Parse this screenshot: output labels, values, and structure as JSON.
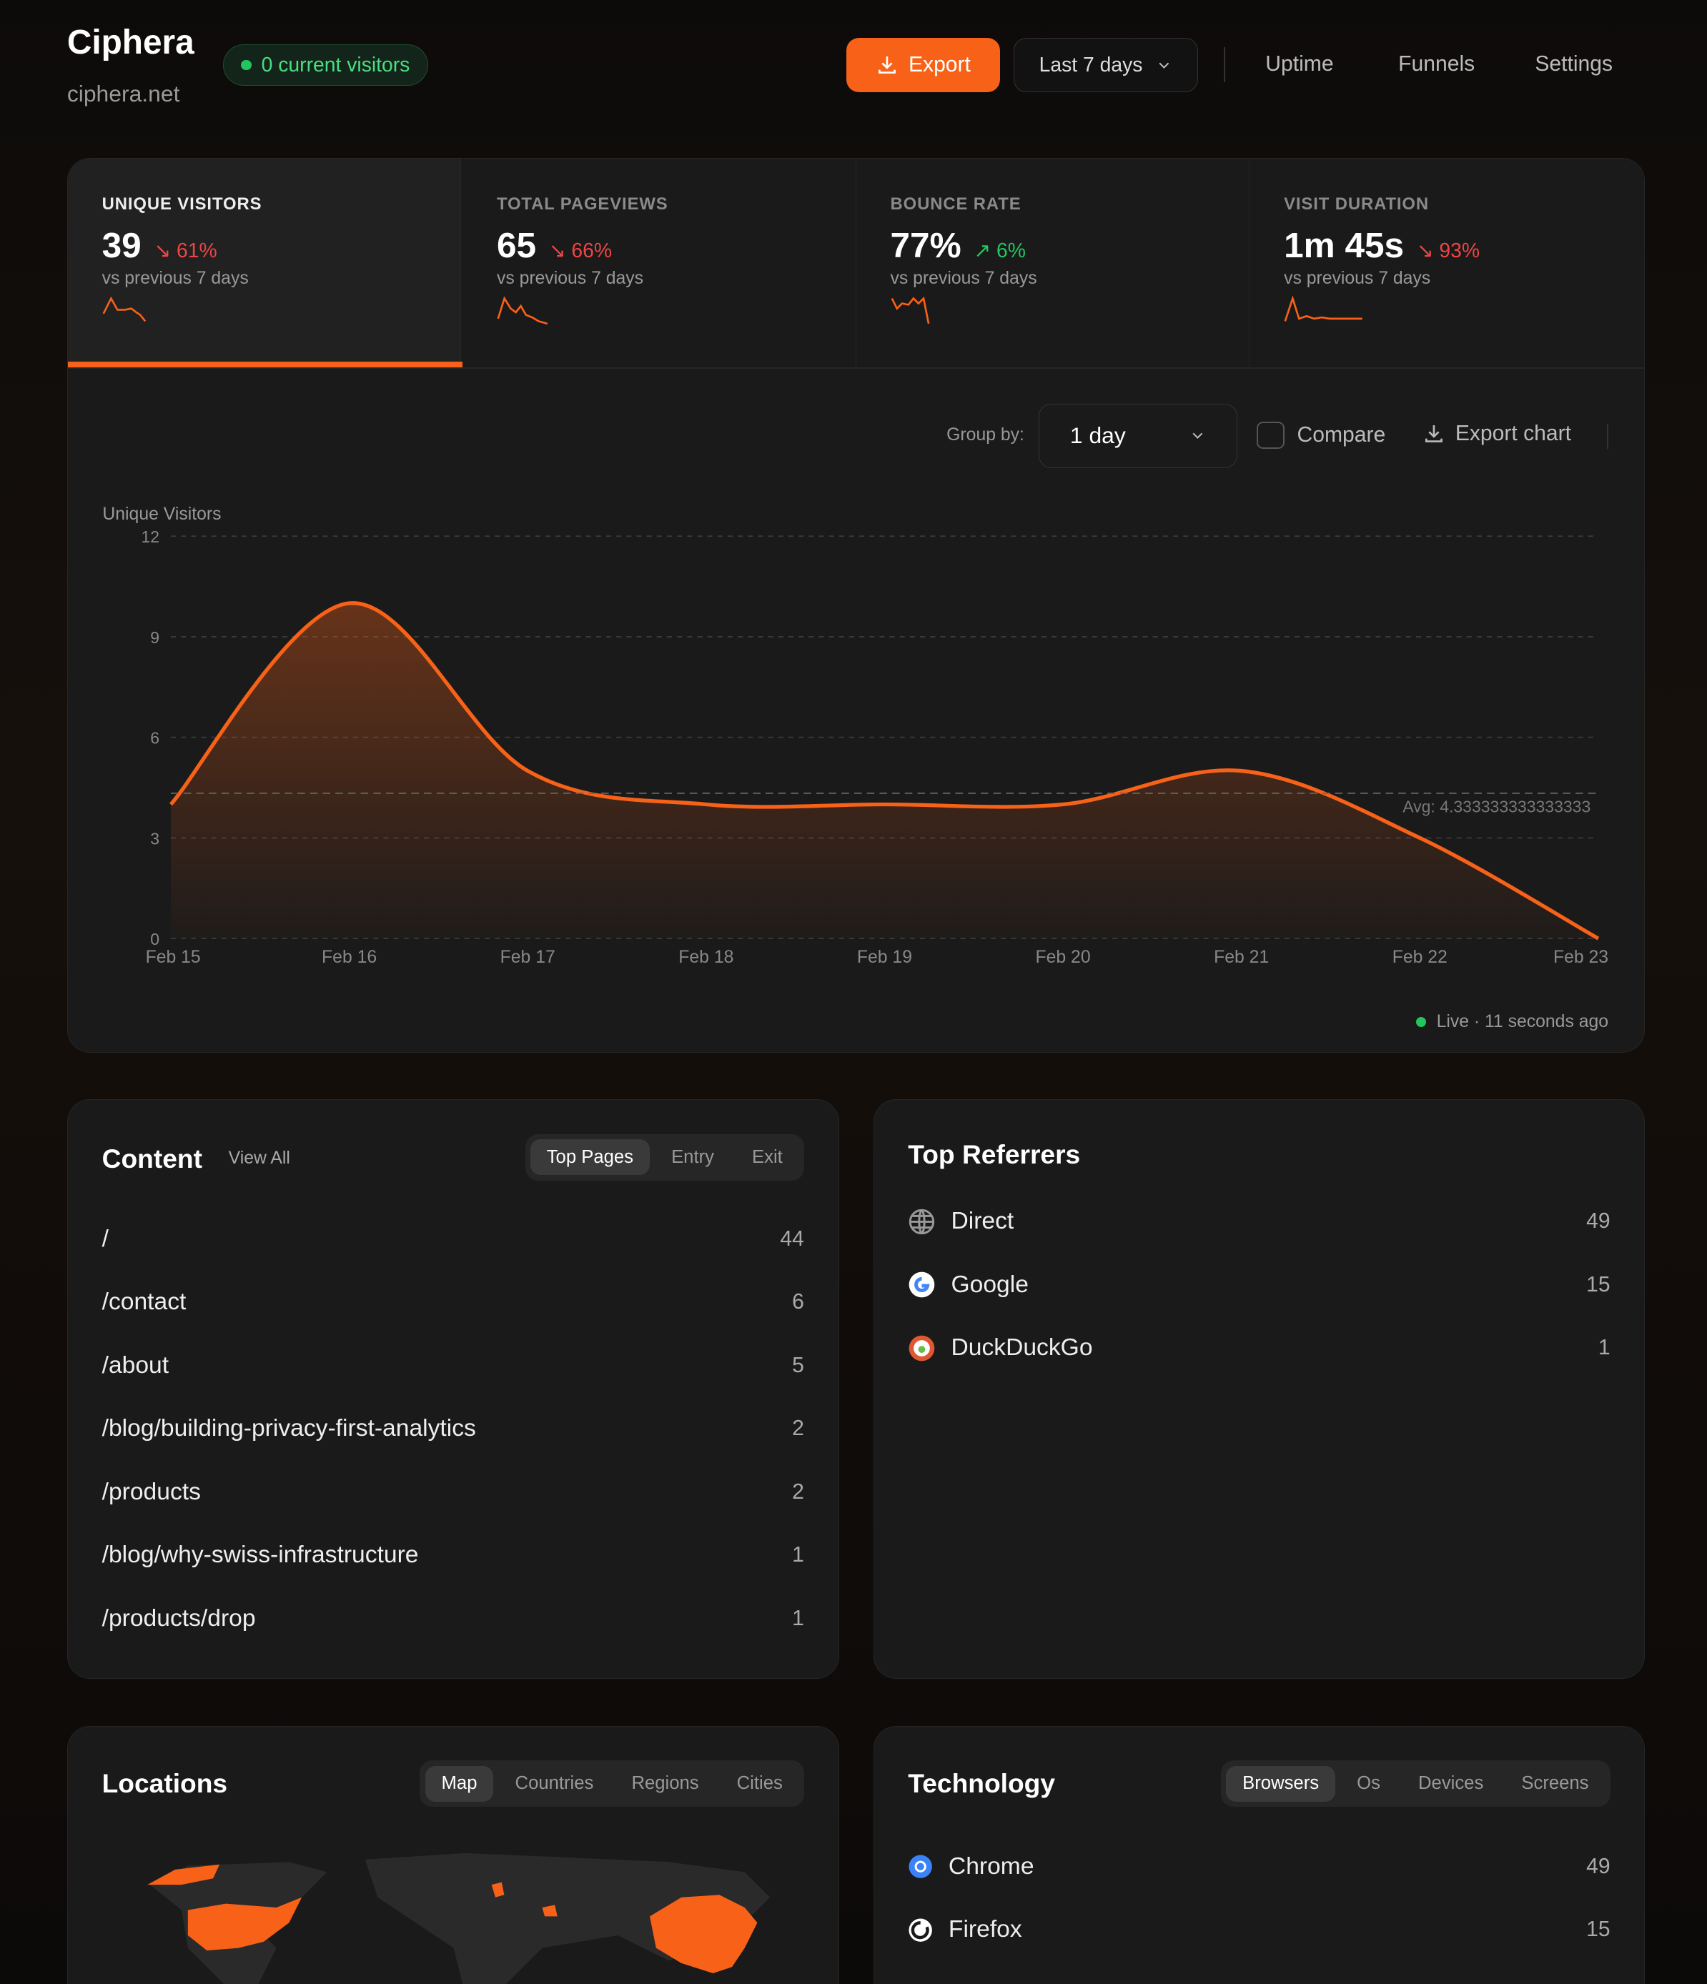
{
  "header": {
    "title": "Ciphera",
    "domain": "ciphera.net",
    "live_visitors": "0 current visitors",
    "export_label": "Export",
    "range_label": "Last 7 days",
    "nav": [
      "Uptime",
      "Funnels",
      "Settings"
    ]
  },
  "stats": [
    {
      "label": "UNIQUE VISITORS",
      "value": "39",
      "change": "61%",
      "direction": "down",
      "sub": "vs previous 7 days",
      "active": true
    },
    {
      "label": "TOTAL PAGEVIEWS",
      "value": "65",
      "change": "66%",
      "direction": "down",
      "sub": "vs previous 7 days"
    },
    {
      "label": "BOUNCE RATE",
      "value": "77%",
      "change": "6%",
      "direction": "up",
      "sub": "vs previous 7 days"
    },
    {
      "label": "VISIT DURATION",
      "value": "1m 45s",
      "change": "93%",
      "direction": "down",
      "sub": "vs previous 7 days"
    }
  ],
  "controls": {
    "group_by_label": "Group by:",
    "group_by_value": "1 day",
    "compare_label": "Compare",
    "export_chart_label": "Export chart"
  },
  "chart_data": {
    "type": "area",
    "ylabel": "Unique Visitors",
    "x": [
      "Feb 15",
      "Feb 16",
      "Feb 17",
      "Feb 18",
      "Feb 19",
      "Feb 20",
      "Feb 21",
      "Feb 22",
      "Feb 23"
    ],
    "values": [
      4,
      10,
      5,
      4,
      4,
      4,
      5,
      3,
      0
    ],
    "yticks": [
      "0",
      "3",
      "6",
      "9",
      "12"
    ],
    "ylim": [
      0,
      12
    ],
    "avg_label": "Avg: 4.333333333333333",
    "avg": 4.333333333333333,
    "grid": true,
    "color": "#f76218"
  },
  "live_status": "Live · 11 seconds ago",
  "content": {
    "title": "Content",
    "view_all": "View All",
    "tabs": [
      "Top Pages",
      "Entry",
      "Exit"
    ],
    "rows": [
      {
        "path": "/",
        "n": "44"
      },
      {
        "path": "/contact",
        "n": "6"
      },
      {
        "path": "/about",
        "n": "5"
      },
      {
        "path": "/blog/building-privacy-first-analytics",
        "n": "2"
      },
      {
        "path": "/products",
        "n": "2"
      },
      {
        "path": "/blog/why-swiss-infrastructure",
        "n": "1"
      },
      {
        "path": "/products/drop",
        "n": "1"
      }
    ]
  },
  "referrers": {
    "title": "Top Referrers",
    "rows": [
      {
        "name": "Direct",
        "n": "49",
        "icon": "globe-icon"
      },
      {
        "name": "Google",
        "n": "15",
        "icon": "google-icon"
      },
      {
        "name": "DuckDuckGo",
        "n": "1",
        "icon": "duckduckgo-icon"
      }
    ]
  },
  "locations": {
    "title": "Locations",
    "tabs": [
      "Map",
      "Countries",
      "Regions",
      "Cities"
    ]
  },
  "technology": {
    "title": "Technology",
    "tabs": [
      "Browsers",
      "Os",
      "Devices",
      "Screens"
    ],
    "rows": [
      {
        "name": "Chrome",
        "n": "49",
        "icon": "chrome-icon"
      },
      {
        "name": "Firefox",
        "n": "15",
        "icon": "firefox-icon"
      }
    ]
  }
}
